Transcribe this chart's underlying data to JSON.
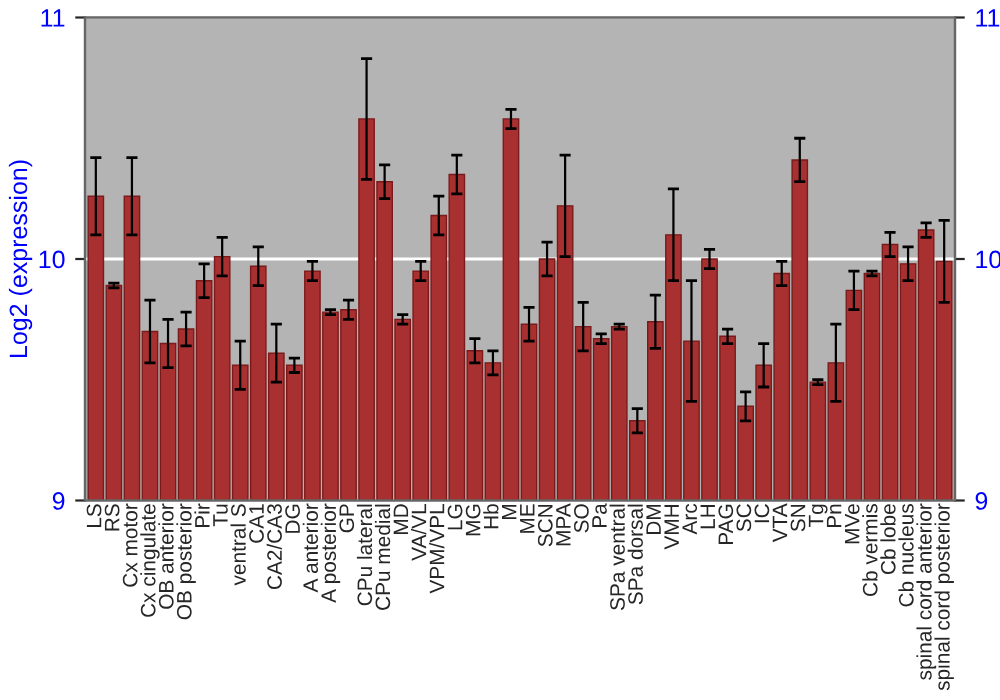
{
  "chart_data": {
    "type": "bar",
    "ylabel": "Log2 (expression)",
    "categories": [
      "LS",
      "RS",
      "Cx motor",
      "Cx cingulate",
      "OB anterior",
      "OB posterior",
      "Pir",
      "Tu",
      "ventral S",
      "CA1",
      "CA2/CA3",
      "DG",
      "A anterior",
      "A posterior",
      "GP",
      "CPu lateral",
      "CPu medial",
      "MD",
      "VA/VL",
      "VPM/VPL",
      "LG",
      "MG",
      "Hb",
      "M",
      "ME",
      "SCN",
      "MPA",
      "SO",
      "Pa",
      "SPa ventral",
      "SPa dorsal",
      "DM",
      "VMH",
      "Arc",
      "LH",
      "PAG",
      "SC",
      "IC",
      "VTA",
      "SN",
      "Tg",
      "Pn",
      "MVe",
      "Cb vermis",
      "Cb lobe",
      "Cb nucleus",
      "spinal cord anterior",
      "spinal cord posterior"
    ],
    "values": [
      10.26,
      9.89,
      10.26,
      9.7,
      9.65,
      9.71,
      9.91,
      10.01,
      9.56,
      9.97,
      9.61,
      9.56,
      9.95,
      9.78,
      9.79,
      10.58,
      10.32,
      9.75,
      9.95,
      10.18,
      10.35,
      9.62,
      9.57,
      10.58,
      9.73,
      10.0,
      10.22,
      9.72,
      9.67,
      9.72,
      9.33,
      9.74,
      10.1,
      9.66,
      10.0,
      9.68,
      9.39,
      9.56,
      9.94,
      10.41,
      9.49,
      9.57,
      9.87,
      9.94,
      10.06,
      9.98,
      10.12,
      9.99
    ],
    "errors": [
      0.16,
      0.01,
      0.16,
      0.13,
      0.1,
      0.07,
      0.07,
      0.08,
      0.1,
      0.08,
      0.12,
      0.03,
      0.04,
      0.01,
      0.04,
      0.25,
      0.07,
      0.02,
      0.04,
      0.08,
      0.08,
      0.05,
      0.05,
      0.04,
      0.07,
      0.07,
      0.21,
      0.1,
      0.02,
      0.01,
      0.05,
      0.11,
      0.19,
      0.25,
      0.04,
      0.03,
      0.06,
      0.09,
      0.05,
      0.09,
      0.01,
      0.16,
      0.08,
      0.01,
      0.05,
      0.07,
      0.03,
      0.17
    ],
    "color": "#a83030",
    "ylim": [
      9,
      11
    ],
    "yticks": [
      9,
      10,
      11
    ],
    "y2lim": [
      9,
      11
    ],
    "y2ticks": [
      9,
      10,
      11
    ],
    "grid": "y"
  }
}
